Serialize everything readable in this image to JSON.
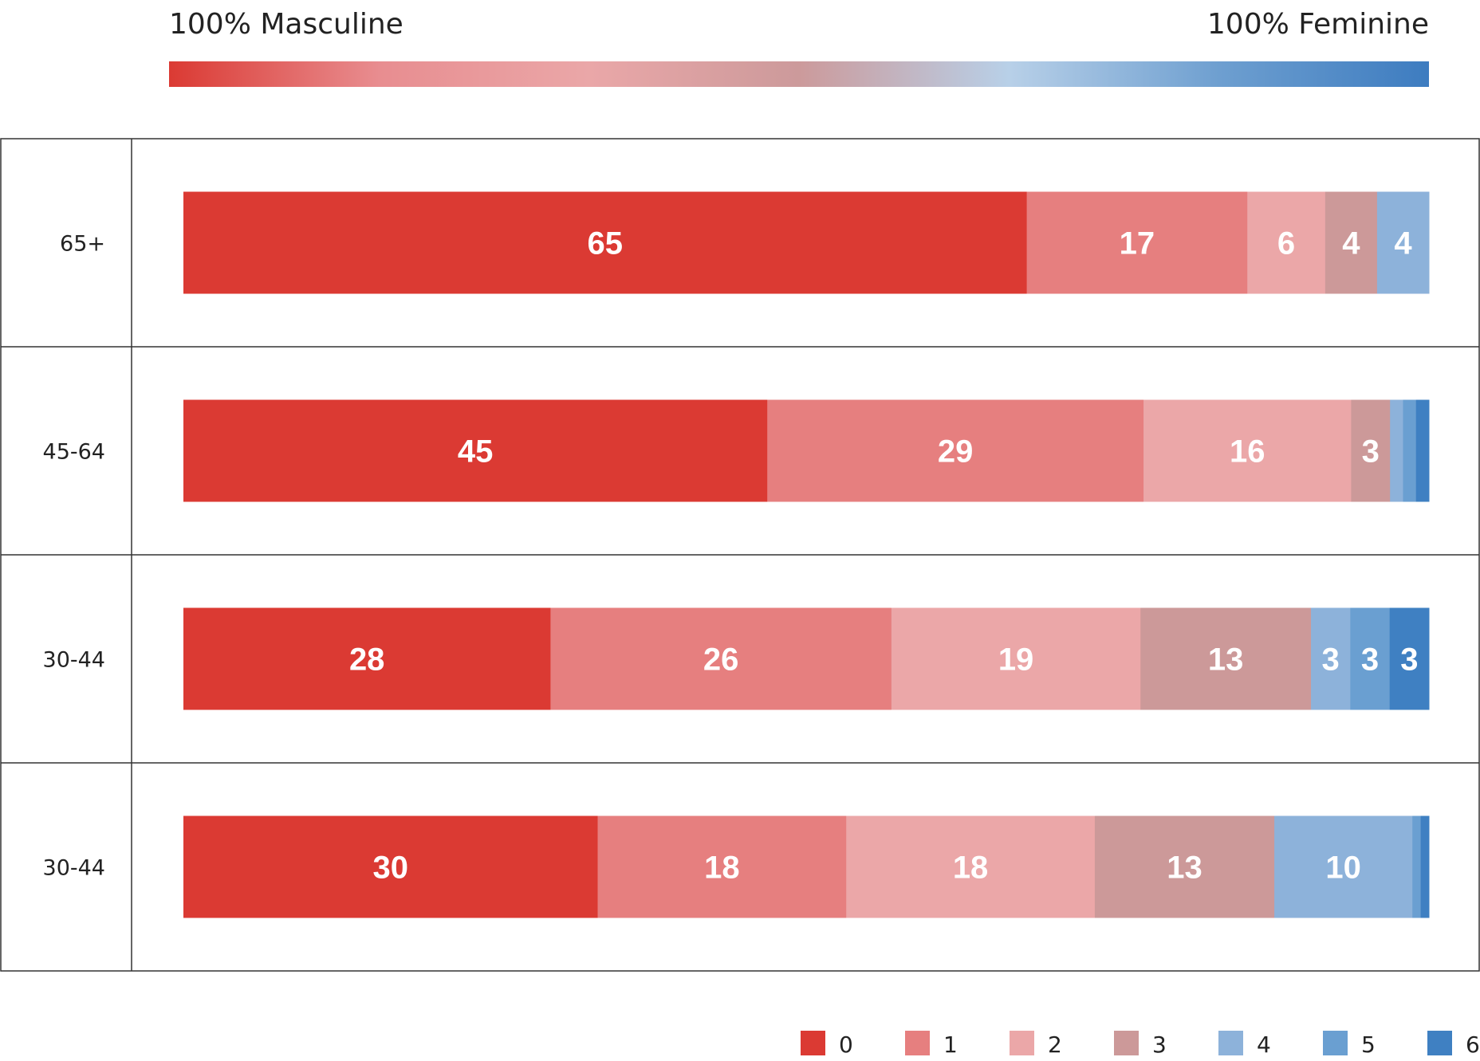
{
  "scale": {
    "left_label": "100% Masculine",
    "right_label": "100% Feminine",
    "gradient_stops": [
      "#db3a33",
      "#e88d90",
      "#eaa7a8",
      "#cc9a9b",
      "#b8d0e8",
      "#6e9fd0",
      "#3d7cc0"
    ]
  },
  "chart_data": {
    "type": "bar",
    "orientation": "horizontal",
    "stacked": true,
    "normalized": true,
    "categories": [
      "65+",
      "45-64",
      "30-44",
      "30-44"
    ],
    "series": [
      {
        "name": "0",
        "color": "#db3a33",
        "values": [
          65,
          45,
          28,
          30
        ]
      },
      {
        "name": "1",
        "color": "#e67f7f",
        "values": [
          17,
          29,
          26,
          18
        ]
      },
      {
        "name": "2",
        "color": "#eba7a8",
        "values": [
          6,
          16,
          19,
          18
        ]
      },
      {
        "name": "3",
        "color": "#cc9999",
        "values": [
          4,
          3,
          13,
          13
        ]
      },
      {
        "name": "4",
        "color": "#8db2da",
        "values": [
          4,
          1,
          3,
          10
        ]
      },
      {
        "name": "5",
        "color": "#6a9fd1",
        "values": [
          0,
          1,
          3,
          0.6
        ]
      },
      {
        "name": "6",
        "color": "#3f80c2",
        "values": [
          0,
          1,
          3,
          0.6
        ]
      }
    ],
    "label_threshold": 3,
    "legend_position": "bottom-right",
    "grid": false
  }
}
